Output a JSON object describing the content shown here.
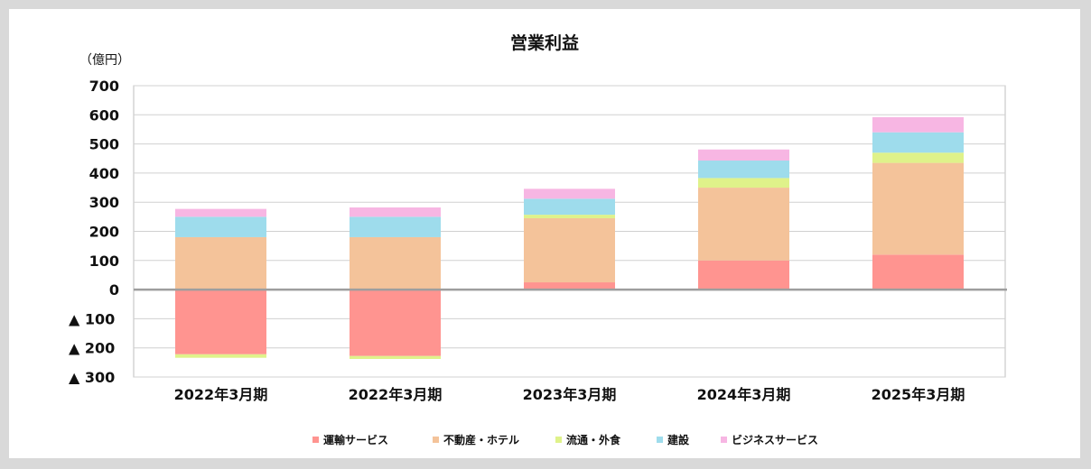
{
  "chart_data": {
    "type": "bar",
    "stacked": true,
    "title": "営業利益",
    "unit_label": "（億円）",
    "categories": [
      "2022年3月期",
      "2022年3月期",
      "2023年3月期",
      "2024年3月期",
      "2025年3月期"
    ],
    "ylim": [
      -300,
      700
    ],
    "y_ticks": [
      {
        "value": 700,
        "label": "700"
      },
      {
        "value": 600,
        "label": "600"
      },
      {
        "value": 500,
        "label": "500"
      },
      {
        "value": 400,
        "label": "400"
      },
      {
        "value": 300,
        "label": "300"
      },
      {
        "value": 200,
        "label": "200"
      },
      {
        "value": 100,
        "label": "100"
      },
      {
        "value": 0,
        "label": "0"
      },
      {
        "value": -100,
        "label": "▲ 100"
      },
      {
        "value": -200,
        "label": "▲ 200"
      },
      {
        "value": -300,
        "label": "▲ 300"
      }
    ],
    "grid": true,
    "legend_position": "bottom",
    "series": [
      {
        "name": "運輸サービス",
        "color": "#ff9490",
        "values": [
          -222,
          -228,
          25,
          100,
          120
        ]
      },
      {
        "name": "不動産・ホテル",
        "color": "#f4c39a",
        "values": [
          180,
          180,
          220,
          250,
          315
        ]
      },
      {
        "name": "流通・外食",
        "color": "#dff28a",
        "values": [
          -12,
          -10,
          12,
          33,
          35
        ]
      },
      {
        "name": "建設",
        "color": "#9edcec",
        "values": [
          70,
          70,
          55,
          60,
          70
        ]
      },
      {
        "name": "ビジネスサービス",
        "color": "#f7b6e3",
        "values": [
          27,
          32,
          34,
          38,
          52
        ]
      }
    ]
  }
}
